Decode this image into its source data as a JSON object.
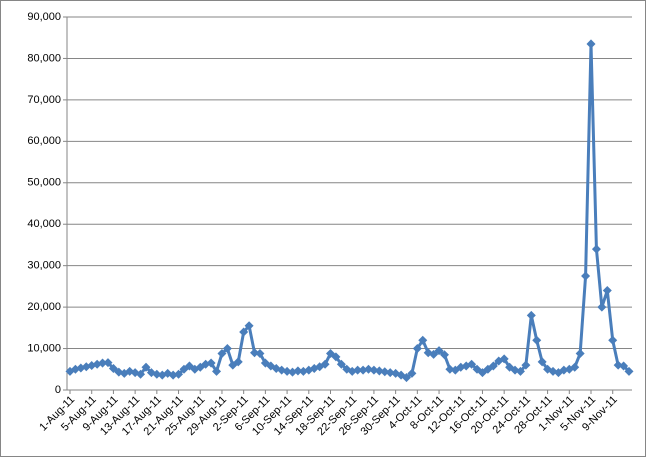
{
  "chart_data": {
    "type": "line",
    "color": "#4a7ebb",
    "grid": true,
    "categories": [
      "1-Aug-11",
      null,
      null,
      null,
      "5-Aug-11",
      null,
      null,
      null,
      "9-Aug-11",
      null,
      null,
      null,
      "13-Aug-11",
      null,
      null,
      null,
      "17-Aug-11",
      null,
      null,
      null,
      "21-Aug-11",
      null,
      null,
      null,
      "25-Aug-11",
      null,
      null,
      null,
      "29-Aug-11",
      null,
      null,
      null,
      "2-Sep-11",
      null,
      null,
      null,
      "6-Sep-11",
      null,
      null,
      null,
      "10-Sep-11",
      null,
      null,
      null,
      "14-Sep-11",
      null,
      null,
      null,
      "18-Sep-11",
      null,
      null,
      null,
      "22-Sep-11",
      null,
      null,
      null,
      "26-Sep-11",
      null,
      null,
      null,
      "30-Sep-11",
      null,
      null,
      null,
      "4-Oct-11",
      null,
      null,
      null,
      "8-Oct-11",
      null,
      null,
      null,
      "12-Oct-11",
      null,
      null,
      null,
      "16-Oct-11",
      null,
      null,
      null,
      "20-Oct-11",
      null,
      null,
      null,
      "24-Oct-11",
      null,
      null,
      null,
      "28-Oct-11",
      null,
      null,
      null,
      "1-Nov-11",
      null,
      null,
      null,
      "5-Nov-11",
      null,
      null,
      null,
      "9-Nov-11",
      null,
      null,
      null
    ],
    "values": [
      4500,
      5000,
      5300,
      5600,
      5900,
      6200,
      6500,
      6600,
      5200,
      4300,
      4000,
      4500,
      4200,
      3800,
      5500,
      4200,
      3800,
      3600,
      4000,
      3600,
      3800,
      5000,
      5800,
      5000,
      5500,
      6200,
      6500,
      4500,
      8800,
      10000,
      6000,
      6800,
      14000,
      15500,
      9000,
      8800,
      6500,
      5800,
      5200,
      4800,
      4500,
      4300,
      4600,
      4500,
      4800,
      5200,
      5600,
      6200,
      8800,
      8000,
      6200,
      5000,
      4500,
      4800,
      4800,
      5000,
      4800,
      4600,
      4400,
      4200,
      4000,
      3600,
      3000,
      4000,
      10000,
      12000,
      9000,
      8600,
      9500,
      8500,
      5000,
      4800,
      5500,
      5800,
      6200,
      5000,
      4200,
      5000,
      5800,
      7000,
      7500,
      5500,
      4800,
      4500,
      6000,
      18000,
      12000,
      6800,
      5000,
      4500,
      4200,
      4800,
      5000,
      5500,
      8800,
      27500,
      83500,
      34000,
      20000,
      24000,
      12000,
      6000,
      5800,
      4500
    ],
    "ylim": [
      0,
      90000
    ],
    "yticks": [
      0,
      {
        "value": 10000,
        "label": "10,000"
      },
      {
        "value": 20000,
        "label": "20,000"
      },
      {
        "value": 30000,
        "label": "30,000"
      },
      {
        "value": 40000,
        "label": "40,000"
      },
      {
        "value": 50000,
        "label": "50,000"
      },
      {
        "value": 60000,
        "label": "60,000"
      },
      {
        "value": 70000,
        "label": "70,000"
      },
      {
        "value": 80000,
        "label": "80,000"
      },
      {
        "value": 90000,
        "label": "90,000"
      }
    ]
  }
}
